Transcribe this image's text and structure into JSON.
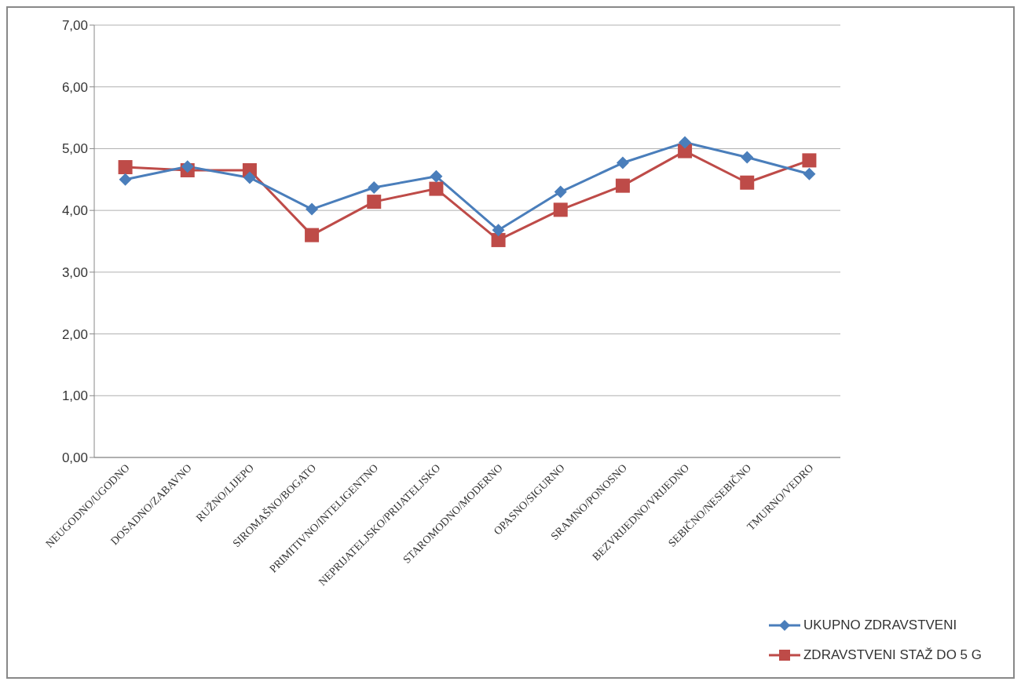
{
  "chart_data": {
    "type": "line",
    "categories": [
      "NEUGODNO/UGODNO",
      "DOSADNO/ZABAVNO",
      "RUŽNO/LIJEPO",
      "SIROMAŠNO/BOGATO",
      "PRIMITIVNO/INTELIGENTNO",
      "NEPRIJATELJSKO/PRIJATELJSKO",
      "STAROMODNO/MODERNO",
      "OPASNO/SIGURNO",
      "SRAMNO/PONOSNO",
      "BEZVRIJEDNO/VRIJEDNO",
      "SEBIČNO/NESEBIČNO",
      "TMURNO/VEDRO"
    ],
    "series": [
      {
        "name": "UKUPNO ZDRAVSTVENI",
        "color": "#4a7ebb",
        "marker": "diamond",
        "values": [
          4.5,
          4.71,
          4.53,
          4.02,
          4.37,
          4.55,
          3.68,
          4.3,
          4.77,
          5.1,
          4.86,
          4.59
        ]
      },
      {
        "name": "ZDRAVSTVENI STAŽ DO 5 G",
        "color": "#be4b48",
        "marker": "square",
        "values": [
          4.7,
          4.65,
          4.65,
          3.6,
          4.14,
          4.35,
          3.52,
          4.01,
          4.4,
          4.96,
          4.45,
          4.81
        ]
      }
    ],
    "ylim": [
      0,
      7
    ],
    "yticks": [
      {
        "value": 0,
        "label": "0,00"
      },
      {
        "value": 1,
        "label": "1,00"
      },
      {
        "value": 2,
        "label": "2,00"
      },
      {
        "value": 3,
        "label": "3,00"
      },
      {
        "value": 4,
        "label": "4,00"
      },
      {
        "value": 5,
        "label": "5,00"
      },
      {
        "value": 6,
        "label": "6,00"
      },
      {
        "value": 7,
        "label": "7,00"
      }
    ],
    "grid": "y",
    "legend": "bottom right"
  }
}
